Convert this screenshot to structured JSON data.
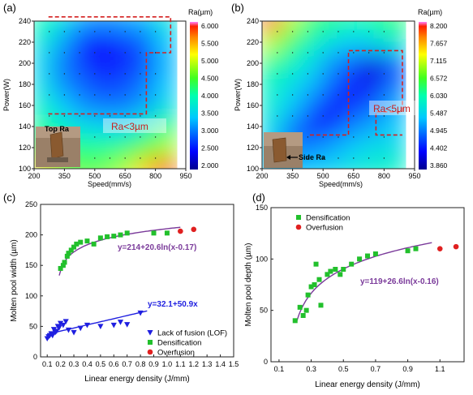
{
  "chart_data": [
    {
      "panel": "(a)",
      "type": "heatmap",
      "xlabel": "Speed(mm/s)",
      "ylabel": "Power(W)",
      "x_ticks": [
        "200",
        "350",
        "500",
        "650",
        "800",
        "950"
      ],
      "y_ticks": [
        "100",
        "120",
        "140",
        "160",
        "180",
        "200",
        "220",
        "240"
      ],
      "xlim": [
        200,
        950
      ],
      "ylim": [
        100,
        240
      ],
      "colorbar_title": "Ra(µm)",
      "colorbar_ticks": [
        "6.000",
        "5.500",
        "5.000",
        "4.500",
        "4.000",
        "3.500",
        "3.000",
        "2.500",
        "2.000"
      ],
      "colorbar_range": [
        2.0,
        6.0
      ],
      "region_label": "Ra<3µm",
      "inset_label": "Top Ra",
      "region_polygon": [
        [
          270,
          152
        ],
        [
          755,
          152
        ],
        [
          755,
          210
        ],
        [
          875,
          210
        ],
        [
          875,
          244
        ],
        [
          270,
          244
        ]
      ],
      "sample_grid": {
        "speed": [
          250,
          350,
          450,
          550,
          650,
          750,
          850
        ],
        "power": [
          240,
          220,
          200,
          180,
          160,
          140,
          120,
          100
        ],
        "ra": [
          [
            4.0,
            3.6,
            3.2,
            3.1,
            3.2,
            3.3,
            3.7
          ],
          [
            3.7,
            3.2,
            2.6,
            2.5,
            2.7,
            2.9,
            3.4
          ],
          [
            3.5,
            3.0,
            2.7,
            2.5,
            2.6,
            2.8,
            3.3
          ],
          [
            3.6,
            3.1,
            2.9,
            2.7,
            2.8,
            3.0,
            3.4
          ],
          [
            3.8,
            3.4,
            3.1,
            3.0,
            3.0,
            3.2,
            3.6
          ],
          [
            4.1,
            3.8,
            3.6,
            3.5,
            3.5,
            3.8,
            4.2
          ],
          [
            4.4,
            4.2,
            4.1,
            4.1,
            4.2,
            4.5,
            4.8
          ],
          [
            5.3,
            4.7,
            4.5,
            4.6,
            4.8,
            5.3,
            5.9
          ]
        ]
      }
    },
    {
      "panel": "(b)",
      "type": "heatmap",
      "xlabel": "Speed(mm/s)",
      "ylabel": "Power(W)",
      "x_ticks": [
        "200",
        "350",
        "500",
        "650",
        "800",
        "950"
      ],
      "y_ticks": [
        "100",
        "120",
        "140",
        "160",
        "180",
        "200",
        "220",
        "240"
      ],
      "xlim": [
        200,
        950
      ],
      "ylim": [
        100,
        240
      ],
      "colorbar_title": "Ra(µm)",
      "colorbar_ticks": [
        "8.200",
        "7.657",
        "7.115",
        "6.572",
        "6.030",
        "5.487",
        "4.945",
        "4.402",
        "3.860"
      ],
      "colorbar_range": [
        3.86,
        8.2
      ],
      "region_label": "Ra<5µm",
      "inset_label": "Side Ra",
      "region_polygon": [
        [
          435,
          132
        ],
        [
          625,
          132
        ],
        [
          625,
          212
        ],
        [
          890,
          212
        ],
        [
          890,
          154
        ],
        [
          760,
          154
        ],
        [
          760,
          132
        ],
        [
          890,
          132
        ],
        [
          890,
          132
        ]
      ],
      "sample_grid": {
        "speed": [
          250,
          350,
          450,
          550,
          650,
          750,
          850
        ],
        "power": [
          240,
          220,
          200,
          180,
          160,
          140,
          120,
          100
        ],
        "ra": [
          [
            8.1,
            7.0,
            6.3,
            6.2,
            6.0,
            6.1,
            6.3
          ],
          [
            7.0,
            6.3,
            5.9,
            5.6,
            5.4,
            5.5,
            5.8
          ],
          [
            6.2,
            5.9,
            5.6,
            5.1,
            4.8,
            4.2,
            4.8
          ],
          [
            5.9,
            5.6,
            5.3,
            4.8,
            4.5,
            4.3,
            4.9
          ],
          [
            5.8,
            5.4,
            4.9,
            4.4,
            4.6,
            4.8,
            5.2
          ],
          [
            5.6,
            5.0,
            4.5,
            4.6,
            5.0,
            5.2,
            5.4
          ],
          [
            5.4,
            5.0,
            5.0,
            5.2,
            5.4,
            5.6,
            5.6
          ],
          [
            5.4,
            5.3,
            5.4,
            5.5,
            5.7,
            5.8,
            5.9
          ]
        ]
      }
    },
    {
      "panel": "(c)",
      "type": "scatter",
      "xlabel": "Linear energy density (J/mm)",
      "ylabel": "Molten pool width (µm)",
      "xlim": [
        0.05,
        1.5
      ],
      "ylim": [
        0,
        250
      ],
      "x_ticks": [
        "0.1",
        "0.2",
        "0.3",
        "0.4",
        "0.5",
        "0.6",
        "0.7",
        "0.8",
        "0.9",
        "1.0",
        "1.1",
        "1.2",
        "1.3",
        "1.4",
        "1.5"
      ],
      "y_ticks": [
        "0",
        "50",
        "100",
        "150",
        "200",
        "250"
      ],
      "legend_position": "bottom-right",
      "series": [
        {
          "name": "Lack of fusion (LOF)",
          "marker": "triangle-down",
          "color": "#1f1fe0",
          "points": [
            [
              0.1,
              30
            ],
            [
              0.11,
              33
            ],
            [
              0.12,
              35
            ],
            [
              0.13,
              38
            ],
            [
              0.14,
              35
            ],
            [
              0.15,
              45
            ],
            [
              0.16,
              40
            ],
            [
              0.17,
              42
            ],
            [
              0.18,
              50
            ],
            [
              0.19,
              48
            ],
            [
              0.2,
              55
            ],
            [
              0.22,
              52
            ],
            [
              0.24,
              58
            ],
            [
              0.26,
              44
            ],
            [
              0.3,
              40
            ],
            [
              0.35,
              47
            ],
            [
              0.4,
              52
            ],
            [
              0.5,
              50
            ],
            [
              0.6,
              52
            ],
            [
              0.65,
              57
            ],
            [
              0.7,
              53
            ],
            [
              0.8,
              72
            ]
          ]
        },
        {
          "name": "Densification",
          "marker": "square",
          "color": "#22c02c",
          "points": [
            [
              0.2,
              145
            ],
            [
              0.22,
              150
            ],
            [
              0.23,
              155
            ],
            [
              0.25,
              165
            ],
            [
              0.26,
              170
            ],
            [
              0.28,
              175
            ],
            [
              0.3,
              180
            ],
            [
              0.32,
              185
            ],
            [
              0.35,
              188
            ],
            [
              0.4,
              190
            ],
            [
              0.45,
              185
            ],
            [
              0.5,
              195
            ],
            [
              0.55,
              197
            ],
            [
              0.6,
              198
            ],
            [
              0.65,
              200
            ],
            [
              0.7,
              203
            ],
            [
              0.9,
              203
            ],
            [
              1.0,
              203
            ]
          ]
        },
        {
          "name": "Overfusion",
          "marker": "circle",
          "color": "#e02020",
          "points": [
            [
              1.1,
              206
            ],
            [
              1.2,
              209
            ]
          ]
        }
      ],
      "fits": [
        {
          "label": "y=214+20.6ln(x-0.17)",
          "a": 214,
          "b": 20.6,
          "c": 0.17,
          "kind": "log",
          "x_range": [
            0.19,
            1.1
          ],
          "color": "#7a3a9a"
        },
        {
          "label": "y=32.1+50.9x",
          "a": 32.1,
          "b": 50.9,
          "kind": "linear",
          "x_range": [
            0.1,
            0.85
          ],
          "color": "#1f1fe0"
        }
      ]
    },
    {
      "panel": "(d)",
      "type": "scatter",
      "xlabel": "Linear energy density (J/mm)",
      "ylabel": "Molten pool depth (µm)",
      "xlim": [
        0.05,
        1.25
      ],
      "ylim": [
        0,
        150
      ],
      "x_ticks": [
        "0.1",
        "0.3",
        "0.5",
        "0.7",
        "0.9",
        "1.1"
      ],
      "y_ticks": [
        "0",
        "50",
        "100",
        "150"
      ],
      "legend_position": "top-left",
      "series": [
        {
          "name": "Densification",
          "marker": "square",
          "color": "#22c02c",
          "points": [
            [
              0.2,
              40
            ],
            [
              0.23,
              53
            ],
            [
              0.25,
              45
            ],
            [
              0.27,
              50
            ],
            [
              0.28,
              65
            ],
            [
              0.3,
              73
            ],
            [
              0.32,
              75
            ],
            [
              0.33,
              95
            ],
            [
              0.35,
              80
            ],
            [
              0.36,
              55
            ],
            [
              0.4,
              85
            ],
            [
              0.42,
              88
            ],
            [
              0.45,
              90
            ],
            [
              0.48,
              85
            ],
            [
              0.5,
              90
            ],
            [
              0.55,
              95
            ],
            [
              0.6,
              100
            ],
            [
              0.65,
              103
            ],
            [
              0.7,
              105
            ],
            [
              0.9,
              108
            ],
            [
              0.95,
              110
            ]
          ]
        },
        {
          "name": "Overfusion",
          "marker": "circle",
          "color": "#e02020",
          "points": [
            [
              1.1,
              110
            ],
            [
              1.2,
              112
            ]
          ]
        }
      ],
      "fits": [
        {
          "label": "y=119+26.6ln(x-0.16)",
          "a": 119,
          "b": 26.6,
          "c": 0.16,
          "kind": "log",
          "x_range": [
            0.21,
            1.05
          ],
          "color": "#7a3a9a"
        }
      ]
    }
  ]
}
